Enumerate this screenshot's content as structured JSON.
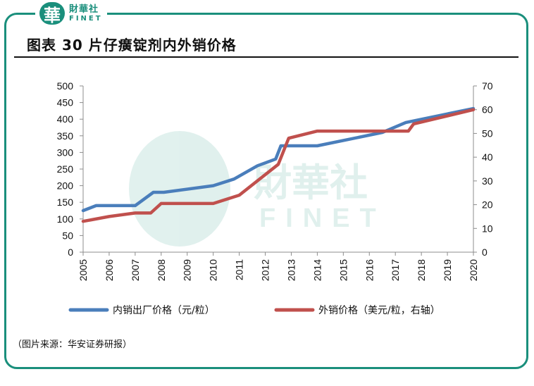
{
  "brand": {
    "seal_text": "華",
    "name_cn": "財華社",
    "name_en": "FINET",
    "watermark_cn": "財華社",
    "watermark_en": "FINET",
    "accent_color": "#1a8f7c"
  },
  "figure_title": "图表 30  片仔癀锭剂内外销价格",
  "source_note": "（图片来源：华安证券研报）",
  "chart_data": {
    "type": "line",
    "x_ticks": [
      "2005",
      "2006",
      "2007",
      "2008",
      "2009",
      "2010",
      "2011",
      "2012",
      "2013",
      "2014",
      "2015",
      "2016",
      "2017",
      "2018",
      "2019",
      "2020"
    ],
    "y_left": {
      "ylim": [
        0,
        500
      ],
      "ticks": [
        "0",
        "50",
        "100",
        "150",
        "200",
        "250",
        "300",
        "350",
        "400",
        "450",
        "500"
      ]
    },
    "y_right": {
      "ylim": [
        0,
        70
      ],
      "ticks": [
        "0",
        "10",
        "20",
        "30",
        "40",
        "50",
        "60",
        "70"
      ]
    },
    "grid": false,
    "legend_position": "bottom",
    "series": [
      {
        "name": "内销出厂价格（元/粒）",
        "axis": "left",
        "color": "#4a7ebb",
        "points": [
          [
            2005,
            125
          ],
          [
            2005.5,
            140
          ],
          [
            2007,
            140
          ],
          [
            2007.7,
            180
          ],
          [
            2008.1,
            180
          ],
          [
            2010,
            200
          ],
          [
            2010.8,
            220
          ],
          [
            2011.7,
            260
          ],
          [
            2012.4,
            280
          ],
          [
            2012.6,
            320
          ],
          [
            2014,
            320
          ],
          [
            2016.5,
            360
          ],
          [
            2017.4,
            390
          ],
          [
            2020,
            432
          ]
        ]
      },
      {
        "name": "外销价格（美元/粒，右轴）",
        "axis": "right",
        "color": "#c0504d",
        "points": [
          [
            2005,
            13
          ],
          [
            2006,
            15
          ],
          [
            2007,
            16.5
          ],
          [
            2007.6,
            16.5
          ],
          [
            2008,
            20.5
          ],
          [
            2010,
            20.5
          ],
          [
            2011,
            24
          ],
          [
            2012.5,
            37
          ],
          [
            2012.9,
            48
          ],
          [
            2014,
            51
          ],
          [
            2017.5,
            51
          ],
          [
            2017.7,
            54
          ],
          [
            2020,
            60
          ]
        ]
      }
    ]
  }
}
